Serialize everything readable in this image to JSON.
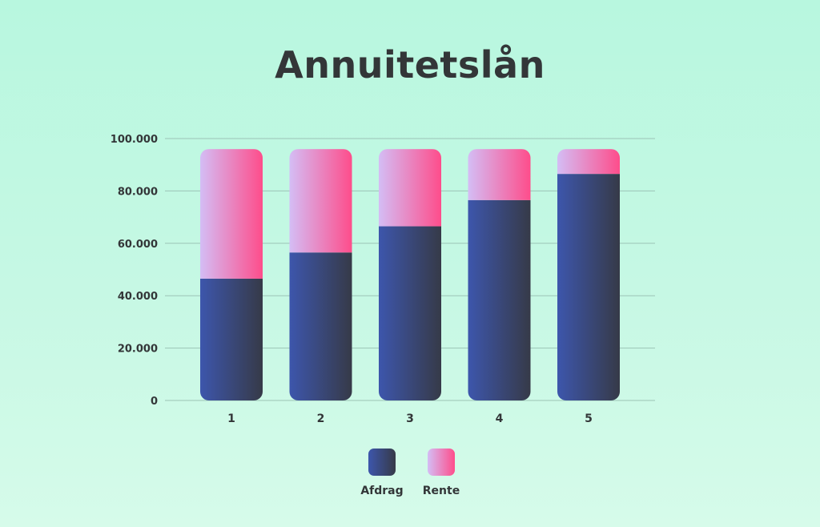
{
  "chart_data": {
    "type": "bar",
    "stacked": true,
    "title": "Annuitetslån",
    "xlabel": "",
    "ylabel": "",
    "categories": [
      "1",
      "2",
      "3",
      "4",
      "5"
    ],
    "series": [
      {
        "name": "Afdrag",
        "values": [
          46500,
          56500,
          66500,
          76500,
          86500
        ],
        "color_start": "#3d56ac",
        "color_end": "#363a48"
      },
      {
        "name": "Rente",
        "values": [
          49500,
          39500,
          29500,
          19500,
          9500
        ],
        "color_start": "#d4bdf5",
        "color_end": "#fe4d8b"
      }
    ],
    "ylim": [
      0,
      100000
    ],
    "yticks": [
      0,
      20000,
      40000,
      60000,
      80000,
      100000
    ],
    "ytick_labels": [
      "0",
      "20.000",
      "40.000",
      "60.000",
      "80.000",
      "100.000"
    ],
    "grid": true,
    "legend_position": "bottom-center"
  }
}
